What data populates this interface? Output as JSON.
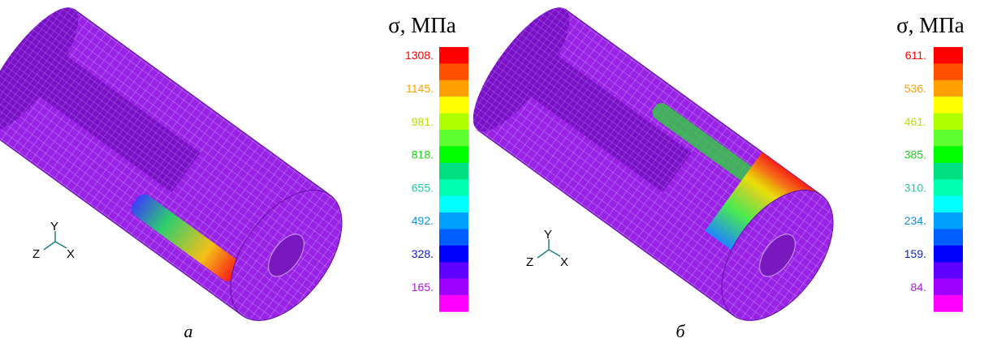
{
  "panels": [
    {
      "legend": {
        "title": "σ, МПа",
        "labels": [
          "1308.",
          "1145.",
          "981.",
          "818.",
          "655.",
          "492.",
          "328.",
          "165."
        ]
      },
      "axes": {
        "y": "Y",
        "z": "Z",
        "x": "X"
      },
      "caption": "а"
    },
    {
      "legend": {
        "title": "σ, МПа",
        "labels": [
          "611.",
          "536.",
          "461.",
          "385.",
          "310.",
          "234.",
          "159.",
          "84."
        ]
      },
      "axes": {
        "y": "Y",
        "z": "Z",
        "x": "X"
      },
      "caption": "б"
    }
  ]
}
